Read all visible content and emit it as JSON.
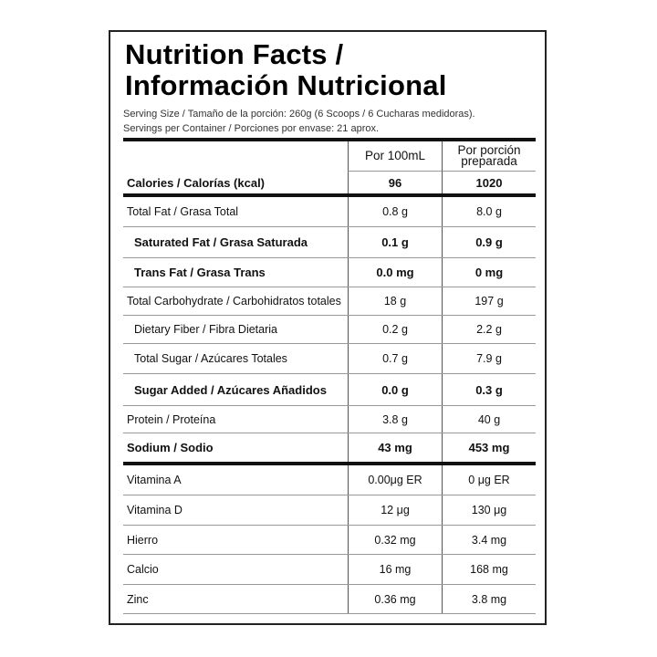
{
  "title_line1": "Nutrition Facts /",
  "title_line2": "Información Nutricional",
  "serving_size": "Serving Size / Tamaño de la porción: 260g (6 Scoops  /  6 Cucharas medidoras).",
  "servings_per_container": "Servings per Container / Porciones por envase: 21 aprox.",
  "columns": [
    "",
    "Por 100mL",
    "Por porción preparada"
  ],
  "rows": [
    {
      "label": "Calories / Calorías (kcal)",
      "per100": "96",
      "perServing": "1020",
      "bold": true,
      "thick": true
    },
    {
      "label": "Total Fat / Grasa Total",
      "per100": "0.8 g",
      "perServing": "8.0 g"
    },
    {
      "label": "Saturated Fat / Grasa Saturada",
      "per100": "0.1 g",
      "perServing": "0.9 g",
      "bold": true,
      "indent": true
    },
    {
      "label": "Trans Fat / Grasa Trans",
      "per100": "0.0 mg",
      "perServing": "0 mg",
      "bold": true,
      "indent": true
    },
    {
      "label": "Total Carbohydrate / Carbohidratos totales",
      "per100": "18 g",
      "perServing": "197 g"
    },
    {
      "label": "Dietary Fiber / Fibra Dietaria",
      "per100": "0.2 g",
      "perServing": "2.2 g",
      "indent": true
    },
    {
      "label": "Total Sugar / Azúcares Totales",
      "per100": "0.7 g",
      "perServing": "7.9 g",
      "indent": true
    },
    {
      "label": "Sugar Added / Azúcares Añadidos",
      "per100": "0.0 g",
      "perServing": "0.3 g",
      "bold": true,
      "indent": true
    },
    {
      "label": "Protein / Proteína",
      "per100": "3.8 g",
      "perServing": "40 g"
    },
    {
      "label": "Sodium / Sodio",
      "per100": "43 mg",
      "perServing": "453 mg",
      "bold": true,
      "thick": true
    },
    {
      "label": "Vitamina A",
      "per100": "0.00μg ER",
      "perServing": "0 μg ER"
    },
    {
      "label": "Vitamina D",
      "per100": "12 μg",
      "perServing": "130 μg"
    },
    {
      "label": "Hierro",
      "per100": "0.32 mg",
      "perServing": "3.4 mg"
    },
    {
      "label": "Calcio",
      "per100": "16 mg",
      "perServing": "168 mg"
    },
    {
      "label": "Zinc",
      "per100": "0.36 mg",
      "perServing": "3.8 mg"
    }
  ]
}
